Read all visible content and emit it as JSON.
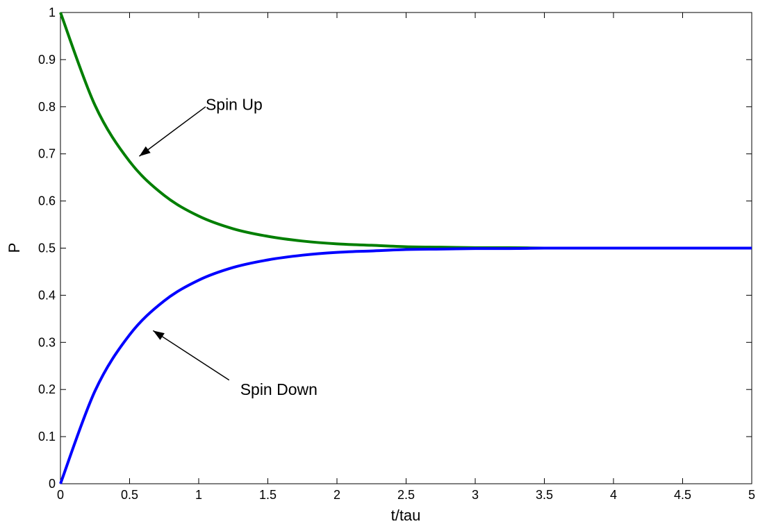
{
  "chart_data": {
    "type": "line",
    "title": "",
    "xlabel": "t/tau",
    "ylabel": "P",
    "xlim": [
      0,
      5
    ],
    "ylim": [
      0,
      1
    ],
    "grid": false,
    "x_ticks": [
      0,
      0.5,
      1,
      1.5,
      2,
      2.5,
      3,
      3.5,
      4,
      4.5,
      5
    ],
    "y_ticks": [
      0,
      0.1,
      0.2,
      0.3,
      0.4,
      0.5,
      0.6,
      0.7,
      0.8,
      0.9,
      1
    ],
    "x_tick_labels": [
      "0",
      "0.5",
      "1",
      "1.5",
      "2",
      "2.5",
      "3",
      "3.5",
      "4",
      "4.5",
      "5"
    ],
    "y_tick_labels": [
      "0",
      "0.1",
      "0.2",
      "0.3",
      "0.4",
      "0.5",
      "0.6",
      "0.7",
      "0.8",
      "0.9",
      "1"
    ],
    "x": [
      0,
      0.25,
      0.5,
      0.75,
      1,
      1.25,
      1.5,
      1.75,
      2,
      2.25,
      2.5,
      2.75,
      3,
      3.25,
      3.5,
      3.75,
      4,
      4.25,
      4.5,
      4.75,
      5
    ],
    "series": [
      {
        "color": "#007f00",
        "values": [
          1.0,
          0.803,
          0.684,
          0.612,
          0.568,
          0.541,
          0.525,
          0.515,
          0.509,
          0.506,
          0.503,
          0.502,
          0.501,
          0.501,
          0.5,
          0.5,
          0.5,
          0.5,
          0.5,
          0.5,
          0.5
        ]
      },
      {
        "color": "#0000ff",
        "values": [
          0.0,
          0.197,
          0.316,
          0.388,
          0.432,
          0.459,
          0.475,
          0.485,
          0.491,
          0.494,
          0.497,
          0.498,
          0.499,
          0.499,
          0.5,
          0.5,
          0.5,
          0.5,
          0.5,
          0.5,
          0.5
        ]
      }
    ],
    "annotations": [
      {
        "text": "Spin Up",
        "label_x": 1.05,
        "label_y": 0.805,
        "arrow_from": [
          1.05,
          0.8
        ],
        "arrow_to": [
          0.57,
          0.695
        ]
      },
      {
        "text": "Spin Down",
        "label_x": 1.3,
        "label_y": 0.2,
        "arrow_from": [
          1.22,
          0.22
        ],
        "arrow_to": [
          0.67,
          0.325
        ]
      }
    ]
  }
}
